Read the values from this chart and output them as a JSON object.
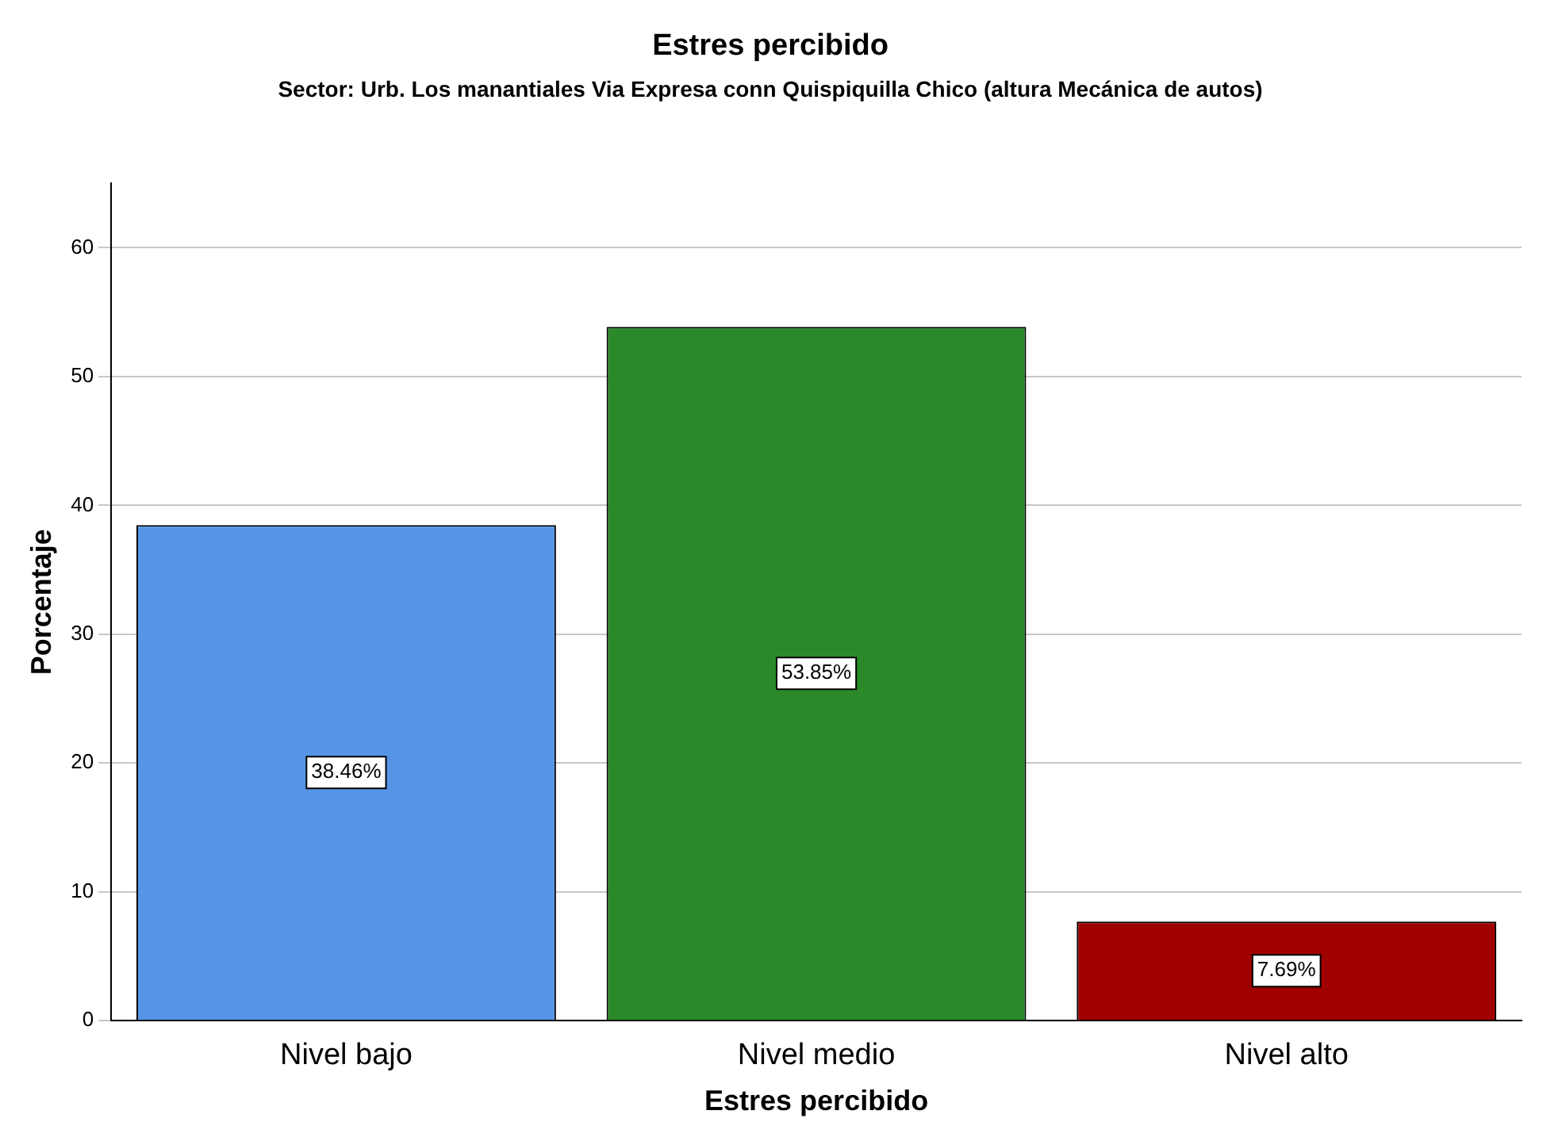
{
  "chart_data": {
    "type": "bar",
    "title": "Estres percibido",
    "subtitle": "Sector: Urb. Los manantiales Via Expresa conn Quispiquilla Chico (altura Mecánica de autos)",
    "xlabel": "Estres percibido",
    "ylabel": "Porcentaje",
    "categories": [
      "Nivel bajo",
      "Nivel medio",
      "Nivel alto"
    ],
    "values": [
      38.46,
      53.85,
      7.69
    ],
    "colors": [
      "#5595e5",
      "#2a8a2a",
      "#a00000"
    ],
    "value_labels": [
      "38.46%",
      "53.85%",
      "7.69%"
    ],
    "ylim": [
      0,
      65
    ],
    "yticks": [
      0,
      10,
      20,
      30,
      40,
      50,
      60
    ],
    "grid": "y",
    "legend": false
  }
}
